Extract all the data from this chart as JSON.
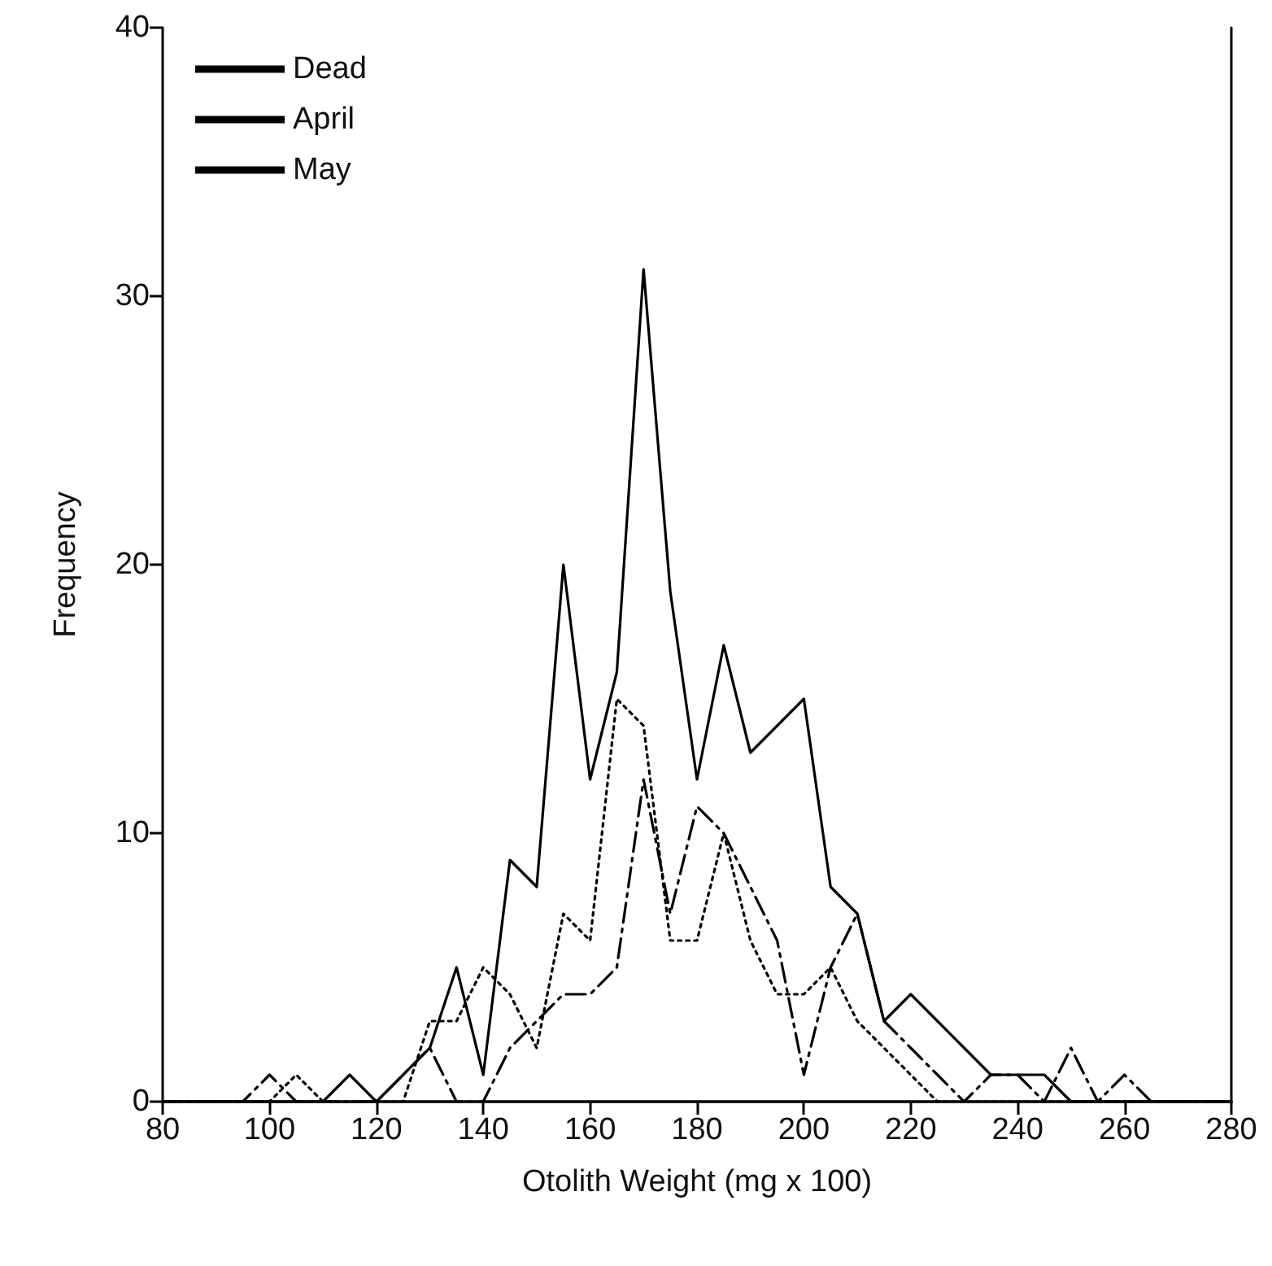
{
  "chart_data": {
    "type": "line",
    "xlabel": "Otolith Weight (mg x 100)",
    "ylabel": "Frequency",
    "x": [
      80,
      85,
      90,
      95,
      100,
      105,
      110,
      115,
      120,
      125,
      130,
      135,
      140,
      145,
      150,
      155,
      160,
      165,
      170,
      175,
      180,
      185,
      190,
      195,
      200,
      205,
      210,
      215,
      220,
      225,
      230,
      235,
      240,
      245,
      250,
      255,
      260,
      265,
      270,
      275,
      280
    ],
    "series": [
      {
        "name": "Dead",
        "color": "#000000",
        "line_style": "solid",
        "values": [
          0,
          0,
          0,
          0,
          0,
          0,
          0,
          1,
          0,
          1,
          2,
          5,
          1,
          9,
          8,
          20,
          12,
          16,
          31,
          19,
          12,
          17,
          13,
          14,
          15,
          8,
          7,
          3,
          4,
          3,
          2,
          1,
          1,
          1,
          0,
          0,
          0,
          0,
          0,
          0,
          0
        ]
      },
      {
        "name": "April",
        "color": "#000000",
        "line_style": "dashed",
        "values": [
          0,
          0,
          0,
          0,
          1,
          0,
          0,
          0,
          0,
          1,
          2,
          0,
          0,
          2,
          3,
          4,
          4,
          5,
          12,
          7,
          11,
          10,
          8,
          6,
          1,
          5,
          7,
          3,
          2,
          1,
          0,
          1,
          1,
          0,
          2,
          0,
          1,
          0,
          0,
          0,
          0
        ]
      },
      {
        "name": "May",
        "color": "#000000",
        "line_style": "dotted",
        "values": [
          0,
          0,
          0,
          0,
          0,
          1,
          0,
          0,
          0,
          0,
          3,
          3,
          5,
          4,
          2,
          7,
          6,
          15,
          14,
          6,
          6,
          10,
          6,
          4,
          4,
          5,
          3,
          2,
          1,
          0,
          0,
          0,
          0,
          0,
          0,
          0,
          0,
          0,
          0,
          0,
          0
        ]
      }
    ],
    "xlim": [
      80,
      280
    ],
    "xticks": [
      80,
      100,
      120,
      140,
      160,
      180,
      200,
      220,
      240,
      260,
      280
    ],
    "ylim": [
      0,
      40
    ],
    "yticks": [
      0,
      10,
      20,
      30,
      40
    ],
    "grid": false,
    "legend": "top left",
    "marker": "none"
  }
}
